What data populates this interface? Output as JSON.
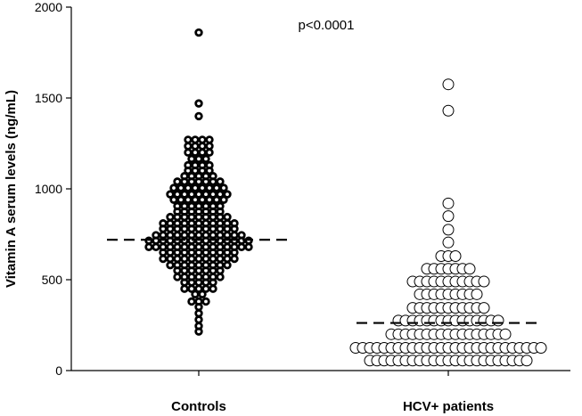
{
  "chart_data": {
    "type": "scatter",
    "subtype": "dot-plot",
    "title": "",
    "xlabel": "",
    "ylabel": "Vitamin A serum levels (ng/mL)",
    "ylim": [
      0,
      2000
    ],
    "yticks": [
      0,
      500,
      1000,
      1500,
      2000
    ],
    "categories": [
      "Controls",
      "HCV+ patients"
    ],
    "annotation": "p<0.0001",
    "grid": false,
    "legend": "none",
    "series": [
      {
        "category": "Controls",
        "marker": "thick-ring",
        "color": "#000000",
        "median": 720,
        "rows": [
          {
            "y": 1860,
            "n": 1
          },
          {
            "y": 1470,
            "n": 1
          },
          {
            "y": 1400,
            "n": 1
          },
          {
            "y": 1270,
            "n": 4
          },
          {
            "y": 1235,
            "n": 4
          },
          {
            "y": 1200,
            "n": 4
          },
          {
            "y": 1165,
            "n": 3
          },
          {
            "y": 1130,
            "n": 4
          },
          {
            "y": 1100,
            "n": 4
          },
          {
            "y": 1070,
            "n": 5
          },
          {
            "y": 1040,
            "n": 7
          },
          {
            "y": 1005,
            "n": 8
          },
          {
            "y": 970,
            "n": 9
          },
          {
            "y": 940,
            "n": 8
          },
          {
            "y": 905,
            "n": 7
          },
          {
            "y": 875,
            "n": 7
          },
          {
            "y": 845,
            "n": 9
          },
          {
            "y": 810,
            "n": 11
          },
          {
            "y": 780,
            "n": 11
          },
          {
            "y": 745,
            "n": 13
          },
          {
            "y": 715,
            "n": 15
          },
          {
            "y": 680,
            "n": 15
          },
          {
            "y": 650,
            "n": 11
          },
          {
            "y": 615,
            "n": 11
          },
          {
            "y": 580,
            "n": 9
          },
          {
            "y": 550,
            "n": 7
          },
          {
            "y": 515,
            "n": 7
          },
          {
            "y": 485,
            "n": 5
          },
          {
            "y": 450,
            "n": 5
          },
          {
            "y": 420,
            "n": 2
          },
          {
            "y": 380,
            "n": 3
          },
          {
            "y": 350,
            "n": 1
          },
          {
            "y": 315,
            "n": 1
          },
          {
            "y": 280,
            "n": 1
          },
          {
            "y": 245,
            "n": 1
          },
          {
            "y": 215,
            "n": 1
          }
        ]
      },
      {
        "category": "HCV+ patients",
        "marker": "open-circle",
        "color": "#000000",
        "median": 262,
        "rows": [
          {
            "y": 1575,
            "n": 1
          },
          {
            "y": 1430,
            "n": 1
          },
          {
            "y": 920,
            "n": 1
          },
          {
            "y": 850,
            "n": 1
          },
          {
            "y": 775,
            "n": 1
          },
          {
            "y": 705,
            "n": 1
          },
          {
            "y": 630,
            "n": 3
          },
          {
            "y": 560,
            "n": 7
          },
          {
            "y": 490,
            "n": 11
          },
          {
            "y": 420,
            "n": 9
          },
          {
            "y": 345,
            "n": 11
          },
          {
            "y": 275,
            "n": 15
          },
          {
            "y": 200,
            "n": 17
          },
          {
            "y": 125,
            "n": 27
          },
          {
            "y": 55,
            "n": 23
          }
        ]
      }
    ]
  }
}
